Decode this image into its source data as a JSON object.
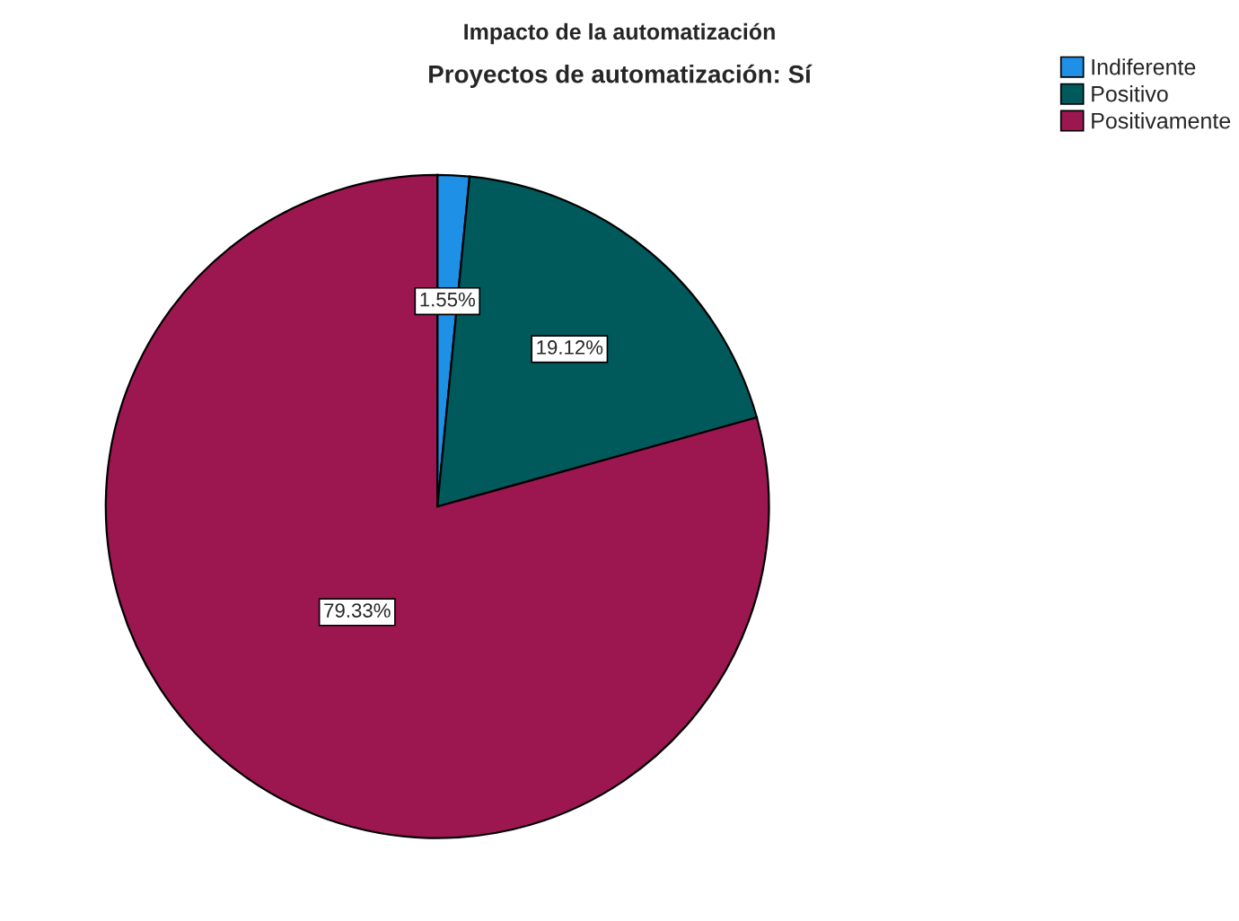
{
  "chart_data": {
    "type": "pie",
    "title": "Impacto de la automatización",
    "subtitle": "Proyectos de automatización: Sí",
    "categories": [
      "Indiferente",
      "Positivo",
      "Positivamente"
    ],
    "values": [
      1.55,
      19.12,
      79.33
    ],
    "colors": [
      "#1e90e6",
      "#005a5c",
      "#9c1750"
    ],
    "value_labels": [
      "1.55%",
      "19.12%",
      "79.33%"
    ],
    "legend": "top right"
  }
}
